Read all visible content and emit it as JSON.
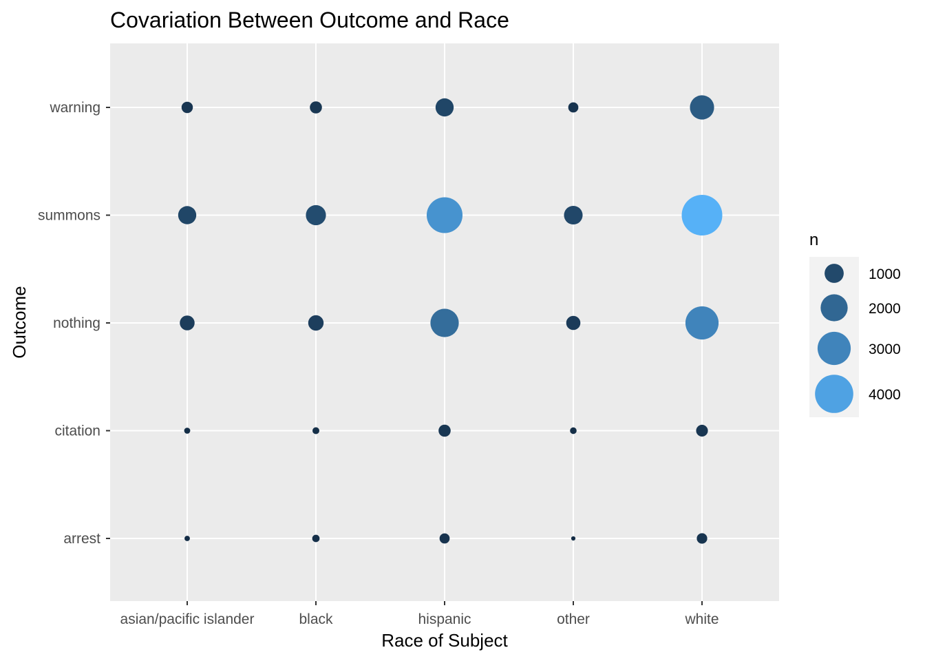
{
  "chart_data": {
    "type": "scatter",
    "title": "Covariation Between Outcome and Race",
    "xlabel": "Race of Subject",
    "ylabel": "Outcome",
    "x_categories": [
      "asian/pacific islander",
      "black",
      "hispanic",
      "other",
      "white"
    ],
    "y_categories": [
      "arrest",
      "citation",
      "nothing",
      "summons",
      "warning"
    ],
    "size_variable": "n",
    "grid": true,
    "legend": {
      "title": "n",
      "placement": "right",
      "breaks": [
        1000,
        2000,
        3000,
        4000
      ],
      "labels": [
        "1000",
        "2000",
        "3000",
        "4000"
      ]
    },
    "color_scale": {
      "low": "#132b43",
      "high": "#56b1f7"
    },
    "size_range": [
      0,
      4500
    ],
    "points": [
      {
        "x": "asian/pacific islander",
        "y": "warning",
        "n": 350
      },
      {
        "x": "black",
        "y": "warning",
        "n": 400
      },
      {
        "x": "hispanic",
        "y": "warning",
        "n": 900
      },
      {
        "x": "other",
        "y": "warning",
        "n": 280
      },
      {
        "x": "white",
        "y": "warning",
        "n": 1600
      },
      {
        "x": "asian/pacific islander",
        "y": "summons",
        "n": 900
      },
      {
        "x": "black",
        "y": "summons",
        "n": 1100
      },
      {
        "x": "hispanic",
        "y": "summons",
        "n": 3500
      },
      {
        "x": "other",
        "y": "summons",
        "n": 950
      },
      {
        "x": "white",
        "y": "summons",
        "n": 4500
      },
      {
        "x": "asian/pacific islander",
        "y": "nothing",
        "n": 600
      },
      {
        "x": "black",
        "y": "nothing",
        "n": 650
      },
      {
        "x": "hispanic",
        "y": "nothing",
        "n": 2200
      },
      {
        "x": "other",
        "y": "nothing",
        "n": 550
      },
      {
        "x": "white",
        "y": "nothing",
        "n": 3000
      },
      {
        "x": "asian/pacific islander",
        "y": "citation",
        "n": 100
      },
      {
        "x": "black",
        "y": "citation",
        "n": 130
      },
      {
        "x": "hispanic",
        "y": "citation",
        "n": 400
      },
      {
        "x": "other",
        "y": "citation",
        "n": 120
      },
      {
        "x": "white",
        "y": "citation",
        "n": 380
      },
      {
        "x": "asian/pacific islander",
        "y": "arrest",
        "n": 80
      },
      {
        "x": "black",
        "y": "arrest",
        "n": 150
      },
      {
        "x": "hispanic",
        "y": "arrest",
        "n": 280
      },
      {
        "x": "other",
        "y": "arrest",
        "n": 50
      },
      {
        "x": "white",
        "y": "arrest",
        "n": 300
      }
    ]
  }
}
